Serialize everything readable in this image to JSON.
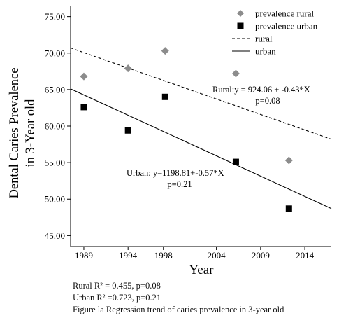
{
  "chart_data": {
    "type": "scatter",
    "xlabel": "Year",
    "ylabel_line1": "Dental Caries Prevalence",
    "ylabel_line2": "in 3-Year old",
    "xlim": [
      1987.5,
      2017
    ],
    "ylim": [
      43.5,
      76.5
    ],
    "xticks": [
      1989,
      1994,
      1998,
      2004,
      2009,
      2014
    ],
    "xtick_labels": [
      "1989",
      "1994",
      "1998",
      "2004",
      "2009",
      "2014"
    ],
    "yticks": [
      45,
      50,
      55,
      60,
      65,
      70,
      75
    ],
    "ytick_labels": [
      "45.00",
      "50.00",
      "55.00",
      "60.00",
      "65.00",
      "70.00",
      "75.00"
    ],
    "grid": false,
    "legend_position": "top-right",
    "legend": [
      {
        "label": "prevalence rural",
        "kind": "marker",
        "marker": "diamond",
        "color": "#8c8c8c"
      },
      {
        "label": "prevalence urban",
        "kind": "marker",
        "marker": "square",
        "color": "#000000"
      },
      {
        "label": "rural",
        "kind": "line",
        "dash": "dashed",
        "color": "#000000"
      },
      {
        "label": "urban",
        "kind": "line",
        "dash": "solid",
        "color": "#000000"
      }
    ],
    "series": [
      {
        "name": "prevalence rural",
        "marker": "diamond",
        "color": "#8c8c8c",
        "x": [
          1989,
          1994,
          1998.2,
          2006.2,
          2012.2
        ],
        "y": [
          66.8,
          67.9,
          70.3,
          67.2,
          55.3
        ]
      },
      {
        "name": "prevalence urban",
        "marker": "square",
        "color": "#000000",
        "x": [
          1989,
          1994,
          1998.2,
          2006.2,
          2012.2
        ],
        "y": [
          62.6,
          59.4,
          64.0,
          55.1,
          48.7
        ]
      }
    ],
    "fit_lines": [
      {
        "name": "rural",
        "dash": "dashed",
        "x": [
          1987.5,
          2017
        ],
        "y": [
          70.7,
          58.2
        ]
      },
      {
        "name": "urban",
        "dash": "solid",
        "x": [
          1987.5,
          2017
        ],
        "y": [
          65.1,
          48.7
        ]
      }
    ],
    "annotations": [
      {
        "lines": [
          "Rural:y = 924.06 + -0.43*X",
          "p=0.08"
        ]
      },
      {
        "lines": [
          "Urban: y=1198.81+-0.57*X",
          "p=0.21"
        ]
      }
    ]
  },
  "captions": {
    "rural_r2": "Rural R² = 0.455, p=0.08",
    "urban_r2": "Urban R² =0.723, p=0.21",
    "figure": "Figure la Regression trend of caries prevalence in 3-year old"
  }
}
